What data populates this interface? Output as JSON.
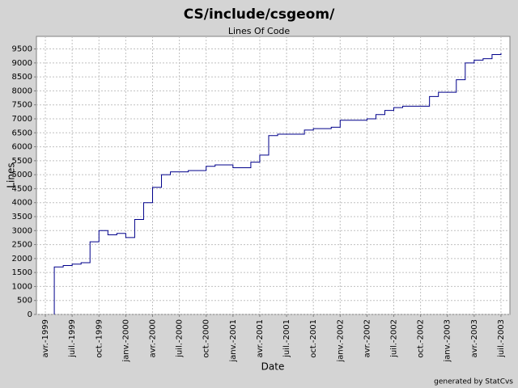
{
  "chart_data": {
    "type": "line",
    "title": "CS/include/csgeom/",
    "subtitle": "Lines Of Code",
    "x_label": "Date",
    "y_label": "Lines",
    "footer": "generated by StatCvs",
    "x": [
      "1999-05",
      "1999-05",
      "1999-06",
      "1999-07",
      "1999-08",
      "1999-09",
      "1999-10",
      "1999-11",
      "1999-12",
      "2000-01",
      "2000-02",
      "2000-03",
      "2000-04",
      "2000-05",
      "2000-06",
      "2000-07",
      "2000-08",
      "2000-09",
      "2000-10",
      "2000-11",
      "2000-12",
      "2001-01",
      "2001-02",
      "2001-03",
      "2001-04",
      "2001-05",
      "2001-06",
      "2001-07",
      "2001-08",
      "2001-09",
      "2001-10",
      "2001-11",
      "2001-12",
      "2002-01",
      "2002-02",
      "2002-03",
      "2002-04",
      "2002-05",
      "2002-06",
      "2002-07",
      "2002-08",
      "2002-09",
      "2002-10",
      "2002-11",
      "2002-12",
      "2003-01",
      "2003-02",
      "2003-03",
      "2003-04",
      "2003-05",
      "2003-06",
      "2003-07"
    ],
    "series": [
      {
        "name": "Lines",
        "color": "#00008b",
        "values": [
          0,
          1700,
          1750,
          1800,
          1850,
          2600,
          3000,
          2850,
          2900,
          2750,
          3400,
          4000,
          4550,
          5000,
          5100,
          5100,
          5150,
          5150,
          5300,
          5350,
          5350,
          5250,
          5250,
          5450,
          5700,
          6400,
          6450,
          6450,
          6450,
          6600,
          6650,
          6650,
          6700,
          6950,
          6950,
          6950,
          7000,
          7150,
          7300,
          7400,
          7450,
          7450,
          7450,
          7800,
          7950,
          7950,
          8400,
          9000,
          9100,
          9150,
          9300,
          9350
        ]
      }
    ],
    "xlim": [
      "1999-03",
      "2003-08"
    ],
    "xticks": [
      {
        "value": "1999-04",
        "label": "avr.-1999"
      },
      {
        "value": "1999-07",
        "label": "juil.-1999"
      },
      {
        "value": "1999-10",
        "label": "oct.-1999"
      },
      {
        "value": "2000-01",
        "label": "janv.-2000"
      },
      {
        "value": "2000-04",
        "label": "avr.-2000"
      },
      {
        "value": "2000-07",
        "label": "juil.-2000"
      },
      {
        "value": "2000-10",
        "label": "oct.-2000"
      },
      {
        "value": "2001-01",
        "label": "janv.-2001"
      },
      {
        "value": "2001-04",
        "label": "avr.-2001"
      },
      {
        "value": "2001-07",
        "label": "juil.-2001"
      },
      {
        "value": "2001-10",
        "label": "oct.-2001"
      },
      {
        "value": "2002-01",
        "label": "janv.-2002"
      },
      {
        "value": "2002-04",
        "label": "avr.-2002"
      },
      {
        "value": "2002-07",
        "label": "juil.-2002"
      },
      {
        "value": "2002-10",
        "label": "oct.-2002"
      },
      {
        "value": "2003-01",
        "label": "janv.-2003"
      },
      {
        "value": "2003-04",
        "label": "avr.-2003"
      },
      {
        "value": "2003-07",
        "label": "juil.-2003"
      }
    ],
    "ylim": [
      0,
      9950
    ],
    "yticks": [
      0,
      500,
      1000,
      1500,
      2000,
      2500,
      3000,
      3500,
      4000,
      4500,
      5000,
      5500,
      6000,
      6500,
      7000,
      7500,
      8000,
      8500,
      9000,
      9500
    ],
    "grid": true
  }
}
